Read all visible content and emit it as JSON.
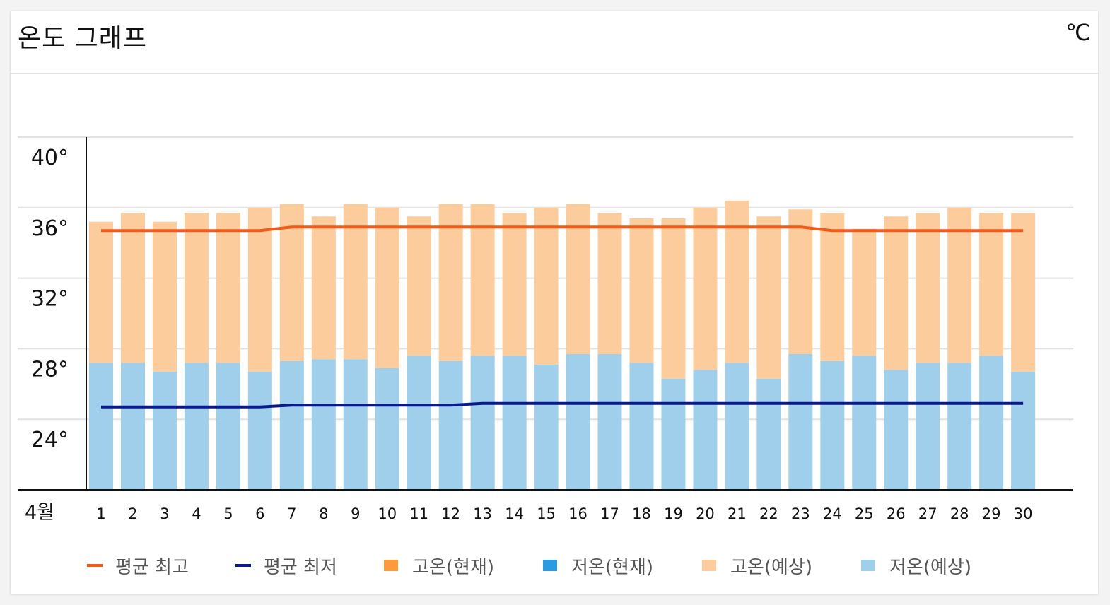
{
  "header": {
    "title": "온도 그래프",
    "unit": "℃"
  },
  "colors": {
    "avg_high": "#f05a1a",
    "avg_low": "#0a1a8c",
    "high_current": "#ff9a3c",
    "low_current": "#2a9be0",
    "high_forecast": "#fccc9c",
    "low_forecast": "#a0cfec",
    "grid": "#e2e2e2",
    "axis": "#111111"
  },
  "legend": [
    {
      "label": "평균 최고",
      "kind": "line",
      "color": "#f05a1a"
    },
    {
      "label": "평균 최저",
      "kind": "line",
      "color": "#0a1a8c"
    },
    {
      "label": "고온(현재)",
      "kind": "box",
      "color": "#ff9a3c"
    },
    {
      "label": "저온(현재)",
      "kind": "box",
      "color": "#2a9be0"
    },
    {
      "label": "고온(예상)",
      "kind": "box",
      "color": "#fccc9c"
    },
    {
      "label": "저온(예상)",
      "kind": "box",
      "color": "#a0cfec"
    }
  ],
  "chart_data": {
    "type": "bar",
    "xlabel": "4월",
    "ylim": [
      20,
      40
    ],
    "yticks": [
      {
        "value": 40,
        "label": "40°"
      },
      {
        "value": 36,
        "label": "36°"
      },
      {
        "value": 32,
        "label": "32°"
      },
      {
        "value": 28,
        "label": "28°"
      },
      {
        "value": 24,
        "label": "24°"
      }
    ],
    "grid": true,
    "legend_position": "bottom",
    "categories": [
      "1",
      "2",
      "3",
      "4",
      "5",
      "6",
      "7",
      "8",
      "9",
      "10",
      "11",
      "12",
      "13",
      "14",
      "15",
      "16",
      "17",
      "18",
      "19",
      "20",
      "21",
      "22",
      "23",
      "24",
      "25",
      "26",
      "27",
      "28",
      "29",
      "30"
    ],
    "series": [
      {
        "name": "고온(예상)",
        "values": [
          35.2,
          35.7,
          35.2,
          35.7,
          35.7,
          36.0,
          36.2,
          35.5,
          36.2,
          36.0,
          35.5,
          36.2,
          36.2,
          35.7,
          36.0,
          36.2,
          35.7,
          35.4,
          35.4,
          36.0,
          36.4,
          35.5,
          35.9,
          35.7,
          34.8,
          35.5,
          35.7,
          36.0,
          35.7,
          35.7
        ]
      },
      {
        "name": "저온(예상)",
        "values": [
          27.2,
          27.2,
          26.7,
          27.2,
          27.2,
          26.7,
          27.3,
          27.4,
          27.4,
          26.9,
          27.6,
          27.3,
          27.6,
          27.6,
          27.1,
          27.7,
          27.7,
          27.2,
          26.3,
          26.8,
          27.2,
          26.3,
          27.7,
          27.3,
          27.6,
          26.8,
          27.2,
          27.2,
          27.6,
          26.7
        ]
      },
      {
        "name": "평균 최고",
        "values": [
          34.7,
          34.7,
          34.7,
          34.7,
          34.7,
          34.7,
          34.9,
          34.9,
          34.9,
          34.9,
          34.9,
          34.9,
          34.9,
          34.9,
          34.9,
          34.9,
          34.9,
          34.9,
          34.9,
          34.9,
          34.9,
          34.9,
          34.9,
          34.7,
          34.7,
          34.7,
          34.7,
          34.7,
          34.7,
          34.7
        ]
      },
      {
        "name": "평균 최저",
        "values": [
          24.7,
          24.7,
          24.7,
          24.7,
          24.7,
          24.7,
          24.8,
          24.8,
          24.8,
          24.8,
          24.8,
          24.8,
          24.9,
          24.9,
          24.9,
          24.9,
          24.9,
          24.9,
          24.9,
          24.9,
          24.9,
          24.9,
          24.9,
          24.9,
          24.9,
          24.9,
          24.9,
          24.9,
          24.9,
          24.9
        ]
      }
    ]
  }
}
